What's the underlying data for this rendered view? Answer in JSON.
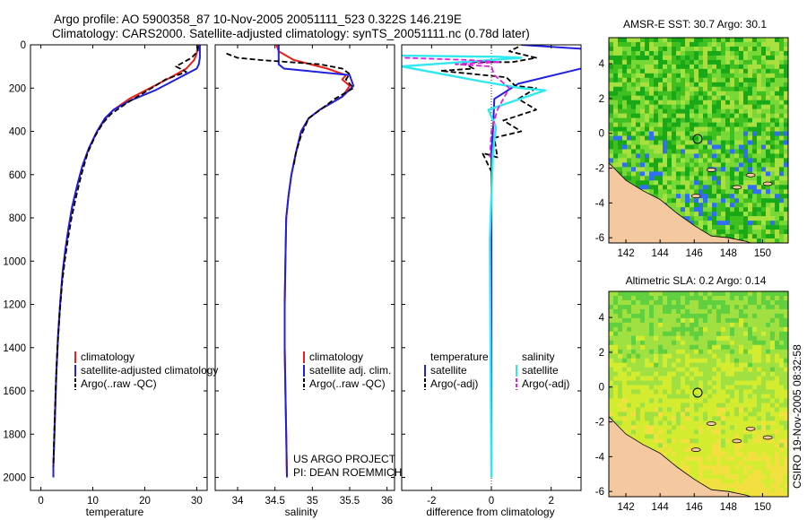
{
  "header": {
    "line1": "Argo profile: AO 5900358_87 10-Nov-2005 20051111_523 0.322S 146.219E",
    "line2": "Climatology: CARS2000. Satellite-adjusted climatology: synTS_20051111.nc (0.78d later)"
  },
  "colors": {
    "climatology": "#e8201a",
    "satellite": "#2020e0",
    "satellite_salinity": "#30e8f0",
    "argo": "#000000",
    "argo_salinity_adj": "#e020e0",
    "land": "#f5c9a0"
  },
  "chart_data": [
    {
      "type": "line",
      "id": "temperature",
      "xlabel": "temperature",
      "xlim": [
        -2,
        32
      ],
      "ylim": [
        2060,
        0
      ],
      "xticks": [
        0,
        10,
        20,
        30
      ],
      "yticks": [
        0,
        200,
        400,
        600,
        800,
        1000,
        1200,
        1400,
        1600,
        1800,
        2000
      ],
      "legend": [
        "climatology",
        "satellite-adjusted climatology",
        "Argo(..raw -QC)"
      ],
      "series": [
        {
          "name": "climatology",
          "style": "climatology",
          "points": [
            [
              30.2,
              0
            ],
            [
              30.0,
              40
            ],
            [
              29.5,
              70
            ],
            [
              28.0,
              110
            ],
            [
              25.0,
              150
            ],
            [
              21.0,
              200
            ],
            [
              17.0,
              250
            ],
            [
              14.0,
              300
            ],
            [
              12.5,
              340
            ],
            [
              10.8,
              400
            ],
            [
              9.2,
              480
            ],
            [
              8.0,
              560
            ],
            [
              7.0,
              650
            ],
            [
              6.0,
              750
            ],
            [
              5.3,
              850
            ],
            [
              4.7,
              950
            ],
            [
              4.2,
              1050
            ],
            [
              3.7,
              1200
            ],
            [
              3.3,
              1350
            ],
            [
              3.0,
              1500
            ],
            [
              2.8,
              1650
            ],
            [
              2.6,
              1800
            ],
            [
              2.4,
              1950
            ],
            [
              2.4,
              2000
            ]
          ]
        },
        {
          "name": "satellite-adjusted climatology",
          "style": "satellite",
          "points": [
            [
              30.6,
              0
            ],
            [
              30.6,
              60
            ],
            [
              30.4,
              90
            ],
            [
              30.0,
              110
            ],
            [
              22.0,
              210
            ],
            [
              17.0,
              260
            ],
            [
              14.0,
              300
            ],
            [
              12.3,
              340
            ],
            [
              10.8,
              400
            ],
            [
              9.2,
              480
            ],
            [
              8.0,
              560
            ],
            [
              7.0,
              650
            ],
            [
              6.0,
              750
            ],
            [
              5.3,
              850
            ],
            [
              4.7,
              950
            ],
            [
              4.2,
              1050
            ],
            [
              3.7,
              1200
            ],
            [
              3.3,
              1350
            ],
            [
              3.0,
              1500
            ],
            [
              2.8,
              1650
            ],
            [
              2.6,
              1800
            ],
            [
              2.4,
              1950
            ],
            [
              2.4,
              2000
            ]
          ]
        },
        {
          "name": "Argo(..raw -QC)",
          "style": "argo",
          "points": [
            [
              30.3,
              5
            ],
            [
              30.2,
              30
            ],
            [
              29.0,
              60
            ],
            [
              26.0,
              100
            ],
            [
              28.0,
              125
            ],
            [
              24.0,
              160
            ],
            [
              22.0,
              190
            ],
            [
              16.5,
              270
            ],
            [
              13.5,
              320
            ],
            [
              12.0,
              360
            ],
            [
              10.5,
              420
            ],
            [
              9.0,
              500
            ],
            [
              7.8,
              600
            ],
            [
              6.8,
              700
            ],
            [
              5.9,
              800
            ],
            [
              5.2,
              900
            ],
            [
              4.6,
              1000
            ],
            [
              4.1,
              1100
            ],
            [
              3.6,
              1250
            ],
            [
              3.2,
              1400
            ],
            [
              2.9,
              1550
            ],
            [
              2.7,
              1700
            ],
            [
              2.5,
              1850
            ],
            [
              2.4,
              1950
            ]
          ]
        }
      ]
    },
    {
      "type": "line",
      "id": "salinity",
      "xlabel": "salinity",
      "xlim": [
        33.7,
        36.1
      ],
      "ylim": [
        2060,
        0
      ],
      "xticks": [
        34,
        34.5,
        35,
        35.5,
        36
      ],
      "tick_labels": [
        "34",
        "34.5",
        "35",
        "35.5",
        "36"
      ],
      "legend": [
        "climatology",
        "satellite adj. clim.",
        "Argo(..raw -QC)"
      ],
      "annotations": [
        "US ARGO PROJECT",
        "PI: DEAN ROEMMICH"
      ],
      "series": [
        {
          "name": "climatology",
          "style": "climatology",
          "points": [
            [
              34.52,
              0
            ],
            [
              34.55,
              30
            ],
            [
              34.75,
              70
            ],
            [
              35.2,
              110
            ],
            [
              35.45,
              140
            ],
            [
              35.4,
              160
            ],
            [
              35.5,
              190
            ],
            [
              35.4,
              240
            ],
            [
              35.1,
              300
            ],
            [
              34.95,
              340
            ],
            [
              34.85,
              400
            ],
            [
              34.78,
              500
            ],
            [
              34.72,
              600
            ],
            [
              34.68,
              700
            ],
            [
              34.65,
              800
            ],
            [
              34.64,
              1000
            ],
            [
              34.63,
              1200
            ],
            [
              34.63,
              1400
            ],
            [
              34.64,
              1600
            ],
            [
              34.65,
              1800
            ],
            [
              34.66,
              2000
            ]
          ]
        },
        {
          "name": "satellite adj. clim.",
          "style": "satellite",
          "points": [
            [
              34.55,
              0
            ],
            [
              34.55,
              90
            ],
            [
              34.62,
              110
            ],
            [
              35.5,
              140
            ],
            [
              35.55,
              190
            ],
            [
              35.4,
              240
            ],
            [
              35.1,
              300
            ],
            [
              34.95,
              340
            ],
            [
              34.85,
              400
            ],
            [
              34.78,
              500
            ],
            [
              34.72,
              600
            ],
            [
              34.68,
              700
            ],
            [
              34.65,
              800
            ],
            [
              34.64,
              1000
            ],
            [
              34.63,
              1200
            ],
            [
              34.63,
              1400
            ],
            [
              34.64,
              1600
            ],
            [
              34.65,
              1800
            ],
            [
              34.66,
              2000
            ]
          ]
        },
        {
          "name": "Argo(..raw -QC)",
          "style": "argo",
          "points": [
            [
              33.85,
              40
            ],
            [
              34.0,
              60
            ],
            [
              34.3,
              70
            ],
            [
              35.1,
              90
            ],
            [
              35.4,
              110
            ],
            [
              35.5,
              135
            ],
            [
              35.45,
              160
            ],
            [
              35.55,
              200
            ],
            [
              35.3,
              250
            ],
            [
              34.95,
              340
            ],
            [
              34.85,
              420
            ],
            [
              34.78,
              500
            ],
            [
              34.75,
              560
            ]
          ]
        }
      ]
    },
    {
      "type": "line",
      "id": "difference",
      "xlabel": "difference from climatology",
      "xlim": [
        -3,
        3
      ],
      "ylim": [
        2060,
        0
      ],
      "xticks": [
        -2,
        0,
        2
      ],
      "legend_temperature": {
        "title": "temperature",
        "entries": [
          "satellite",
          "Argo(-adj)"
        ]
      },
      "legend_salinity": {
        "title": "salinity",
        "entries": [
          "satellite",
          "Argo(-adj)"
        ]
      },
      "series": [
        {
          "name": "temperature satellite",
          "style": "satellite",
          "points": [
            [
              1.0,
              0
            ],
            [
              3.2,
              20
            ],
            [
              3.3,
              60
            ],
            [
              3.0,
              110
            ],
            [
              0.9,
              180
            ],
            [
              0.1,
              250
            ],
            [
              0.05,
              400
            ],
            [
              0.0,
              500
            ],
            [
              0.0,
              2000
            ]
          ]
        },
        {
          "name": "temperature Argo(-adj)",
          "style": "argo",
          "points": [
            [
              0.9,
              10
            ],
            [
              0.6,
              30
            ],
            [
              1.5,
              60
            ],
            [
              0.7,
              80
            ],
            [
              -1.0,
              80
            ],
            [
              -0.6,
              110
            ],
            [
              -1.7,
              120
            ],
            [
              0.5,
              150
            ],
            [
              0.8,
              190
            ],
            [
              1.5,
              200
            ],
            [
              0.9,
              250
            ],
            [
              1.5,
              300
            ],
            [
              0.4,
              350
            ],
            [
              1.0,
              400
            ],
            [
              0.1,
              430
            ],
            [
              0.2,
              520
            ],
            [
              -0.3,
              500
            ],
            [
              0.05,
              600
            ]
          ]
        },
        {
          "name": "salinity satellite",
          "style": "satellite_salinity",
          "points": [
            [
              -3.0,
              50
            ],
            [
              0.2,
              55
            ],
            [
              1.0,
              60
            ],
            [
              -3.0,
              100
            ],
            [
              -0.3,
              170
            ],
            [
              1.0,
              200
            ],
            [
              1.8,
              210
            ],
            [
              -0.1,
              300
            ],
            [
              0.15,
              380
            ],
            [
              0.05,
              500
            ],
            [
              0.0,
              700
            ],
            [
              -0.05,
              900
            ],
            [
              0.0,
              2000
            ]
          ]
        },
        {
          "name": "salinity Argo(-adj)",
          "style": "argo_salinity_adj",
          "points": [
            [
              -2.9,
              60
            ],
            [
              -0.8,
              70
            ],
            [
              0.3,
              80
            ],
            [
              -1.2,
              90
            ],
            [
              0.0,
              100
            ],
            [
              0.1,
              140
            ],
            [
              0.6,
              200
            ],
            [
              0.4,
              250
            ],
            [
              0.2,
              300
            ],
            [
              0.0,
              400
            ],
            [
              -0.05,
              520
            ]
          ]
        }
      ]
    },
    {
      "type": "heatmap",
      "id": "sst_map",
      "title": "AMSR-E SST: 30.7 Argo: 30.1",
      "xlim": [
        141,
        151.5
      ],
      "ylim": [
        -6.3,
        5.5
      ],
      "xticks": [
        142,
        144,
        146,
        148,
        150
      ],
      "yticks": [
        4,
        2,
        0,
        -2,
        -4,
        -6
      ],
      "marker": [
        146.2,
        -0.32
      ],
      "palette": [
        "#18a818",
        "#40c020",
        "#78d838",
        "#a8e040",
        "#3070f0"
      ]
    },
    {
      "type": "heatmap",
      "id": "sla_map",
      "title": "Altimetric SLA: 0.2 Argo: 0.14",
      "xlim": [
        141,
        151.5
      ],
      "ylim": [
        -6.3,
        5.5
      ],
      "xticks": [
        142,
        144,
        146,
        148,
        150
      ],
      "yticks": [
        4,
        2,
        0,
        -2,
        -4,
        -6
      ],
      "marker": [
        146.2,
        -0.32
      ],
      "palette": [
        "#60d040",
        "#a0e040",
        "#d4ec30",
        "#f2e040"
      ]
    }
  ],
  "footer": {
    "credit": "CSIRO 19-Nov-2005 08:32:58"
  }
}
